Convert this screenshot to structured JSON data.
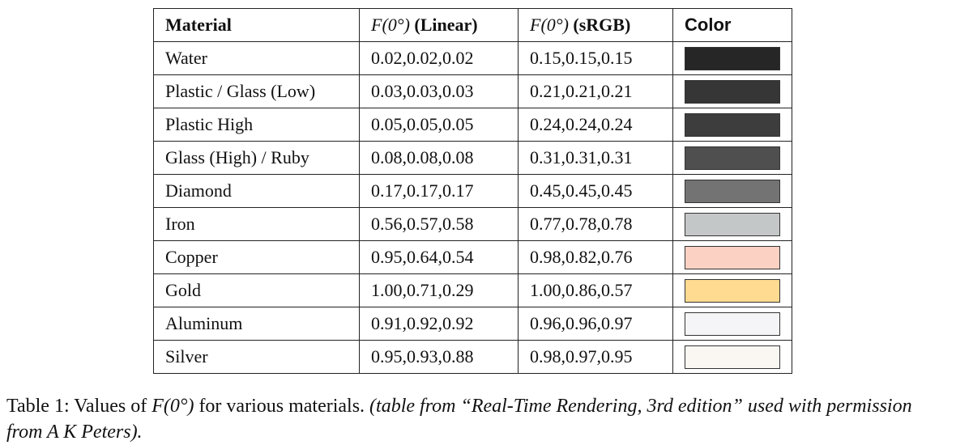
{
  "table": {
    "headers": [
      {
        "text": "Material"
      },
      {
        "symbol": "F(0°)",
        "text": "(Linear)"
      },
      {
        "symbol": "F(0°)",
        "text": "(sRGB)"
      },
      {
        "text": "Color"
      }
    ],
    "rows": [
      {
        "material": "Water",
        "linear": "0.02,0.02,0.02",
        "srgb": "0.15,0.15,0.15",
        "color": "#262626"
      },
      {
        "material": "Plastic / Glass (Low)",
        "linear": "0.03,0.03,0.03",
        "srgb": "0.21,0.21,0.21",
        "color": "#363636"
      },
      {
        "material": "Plastic High",
        "linear": "0.05,0.05,0.05",
        "srgb": "0.24,0.24,0.24",
        "color": "#3d3d3d"
      },
      {
        "material": "Glass (High) / Ruby",
        "linear": "0.08,0.08,0.08",
        "srgb": "0.31,0.31,0.31",
        "color": "#4f4f4f"
      },
      {
        "material": "Diamond",
        "linear": "0.17,0.17,0.17",
        "srgb": "0.45,0.45,0.45",
        "color": "#737373"
      },
      {
        "material": "Iron",
        "linear": "0.56,0.57,0.58",
        "srgb": "0.77,0.78,0.78",
        "color": "#c4c7c7"
      },
      {
        "material": "Copper",
        "linear": "0.95,0.64,0.54",
        "srgb": "0.98,0.82,0.76",
        "color": "#fad1c2"
      },
      {
        "material": "Gold",
        "linear": "1.00,0.71,0.29",
        "srgb": "1.00,0.86,0.57",
        "color": "#ffdb91"
      },
      {
        "material": "Aluminum",
        "linear": "0.91,0.92,0.92",
        "srgb": "0.96,0.96,0.97",
        "color": "#f5f5f7"
      },
      {
        "material": "Silver",
        "linear": "0.95,0.93,0.88",
        "srgb": "0.98,0.97,0.95",
        "color": "#faf7f2"
      }
    ]
  },
  "caption": {
    "label": "Table 1:",
    "before": "Values of",
    "symbol": "F(0°)",
    "after": "for various materials.",
    "source": "(table from “Real-Time Rendering, 3rd edition” used with permission from A K Peters)."
  }
}
